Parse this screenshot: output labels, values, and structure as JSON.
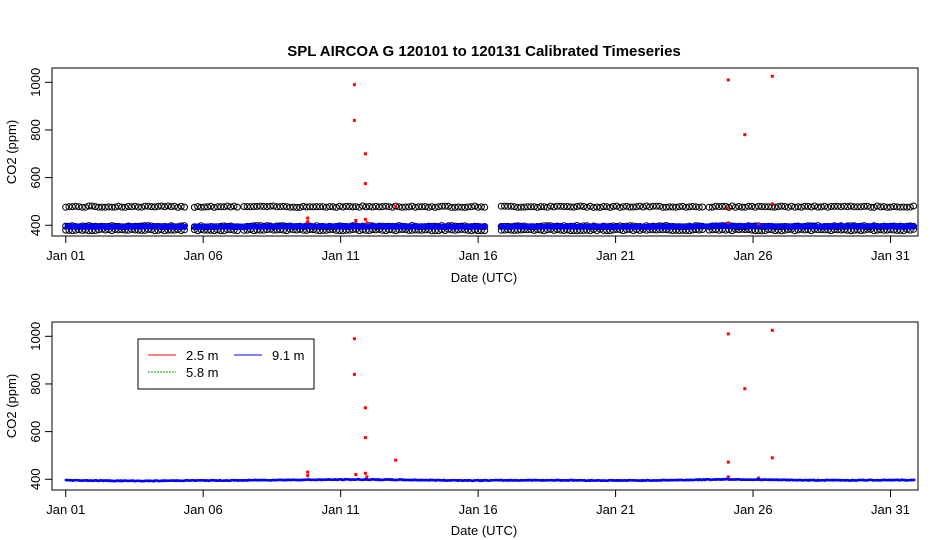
{
  "title": "SPL   AIRCOA  G    120101  to  120131   Calibrated Timeseries",
  "colors": {
    "series_2_5": "#ff0000",
    "series_5_8": "#00aa00",
    "series_9_1": "#0000ff",
    "raw": "#000000"
  },
  "chart_data": [
    {
      "type": "scatter",
      "panel": "top",
      "xlabel": "Date (UTC)",
      "ylabel": "CO2 (ppm)",
      "xlim": [
        0.5,
        32
      ],
      "ylim": [
        355,
        1060
      ],
      "x_ticks": [
        {
          "x": 1,
          "label": "Jan 01"
        },
        {
          "x": 6,
          "label": "Jan 06"
        },
        {
          "x": 11,
          "label": "Jan 11"
        },
        {
          "x": 16,
          "label": "Jan 16"
        },
        {
          "x": 21,
          "label": "Jan 21"
        },
        {
          "x": 26,
          "label": "Jan 26"
        },
        {
          "x": 31,
          "label": "Jan 31"
        }
      ],
      "y_ticks": [
        400,
        600,
        800,
        1000
      ],
      "legend": "none",
      "raw_levels": [
        380,
        396,
        478
      ],
      "raw_gaps": [
        [
          5.35,
          5.65
        ],
        [
          7.3,
          7.45
        ],
        [
          16.25,
          16.75
        ],
        [
          24.2,
          24.3
        ]
      ],
      "series": [
        {
          "name": "",
          "color_key": "series_9_1",
          "gaps": [
            [
              5.35,
              5.65
            ],
            [
              16.25,
              16.75
            ]
          ],
          "points": [
            [
              1,
              397
            ],
            [
              2.5,
              396
            ],
            [
              4,
              397
            ],
            [
              5.5,
              396
            ],
            [
              7,
              396
            ],
            [
              8.5,
              397
            ],
            [
              10,
              398
            ],
            [
              11.5,
              398
            ],
            [
              13,
              397
            ],
            [
              14.5,
              396
            ],
            [
              16,
              396
            ],
            [
              17.5,
              397
            ],
            [
              19,
              397
            ],
            [
              20.5,
              396
            ],
            [
              22,
              396
            ],
            [
              23.5,
              397
            ],
            [
              25,
              400
            ],
            [
              26.5,
              398
            ],
            [
              28,
              397
            ],
            [
              29.5,
              398
            ],
            [
              31,
              398
            ],
            [
              31.9,
              397
            ]
          ]
        },
        {
          "name": "",
          "color_key": "series_2_5",
          "points": [
            [
              9.8,
              430
            ],
            [
              9.8,
              415
            ],
            [
              11.5,
              990
            ],
            [
              11.5,
              840
            ],
            [
              11.55,
              420
            ],
            [
              11.9,
              700
            ],
            [
              11.9,
              575
            ],
            [
              11.9,
              425
            ],
            [
              11.95,
              410
            ],
            [
              13,
              480
            ],
            [
              25.1,
              1010
            ],
            [
              25.1,
              472
            ],
            [
              25.1,
              410
            ],
            [
              25.7,
              780
            ],
            [
              26.7,
              1025
            ],
            [
              26.7,
              490
            ],
            [
              26.2,
              405
            ]
          ]
        }
      ]
    },
    {
      "type": "scatter",
      "panel": "bottom",
      "xlabel": "Date (UTC)",
      "ylabel": "CO2 (ppm)",
      "xlim": [
        0.5,
        32
      ],
      "ylim": [
        355,
        1060
      ],
      "x_ticks": [
        {
          "x": 1,
          "label": "Jan 01"
        },
        {
          "x": 6,
          "label": "Jan 06"
        },
        {
          "x": 11,
          "label": "Jan 11"
        },
        {
          "x": 16,
          "label": "Jan 16"
        },
        {
          "x": 21,
          "label": "Jan 21"
        },
        {
          "x": 26,
          "label": "Jan 26"
        },
        {
          "x": 31,
          "label": "Jan 31"
        }
      ],
      "y_ticks": [
        400,
        600,
        800,
        1000
      ],
      "legend": "top-left",
      "series": [
        {
          "name": "2.5 m",
          "color_key": "series_2_5",
          "points": [
            [
              9.8,
              430
            ],
            [
              9.8,
              415
            ],
            [
              11.5,
              990
            ],
            [
              11.5,
              840
            ],
            [
              11.55,
              420
            ],
            [
              11.9,
              700
            ],
            [
              11.9,
              575
            ],
            [
              11.9,
              425
            ],
            [
              11.95,
              410
            ],
            [
              13,
              480
            ],
            [
              25.1,
              1010
            ],
            [
              25.1,
              472
            ],
            [
              25.1,
              410
            ],
            [
              25.7,
              780
            ],
            [
              26.7,
              1025
            ],
            [
              26.7,
              490
            ],
            [
              26.2,
              405
            ]
          ]
        },
        {
          "name": "5.8 m",
          "color_key": "series_5_8",
          "points": []
        },
        {
          "name": "9.1 m",
          "color_key": "series_9_1",
          "points": [
            [
              1,
              397
            ],
            [
              2.5,
              395
            ],
            [
              4,
              394
            ],
            [
              5.5,
              396
            ],
            [
              7,
              396
            ],
            [
              8.5,
              398
            ],
            [
              10,
              399
            ],
            [
              11.5,
              400
            ],
            [
              13,
              399
            ],
            [
              14.5,
              397
            ],
            [
              16,
              396
            ],
            [
              17.5,
              397
            ],
            [
              19,
              397
            ],
            [
              20.5,
              396
            ],
            [
              22,
              396
            ],
            [
              23.5,
              398
            ],
            [
              25,
              401
            ],
            [
              26.5,
              399
            ],
            [
              28,
              397
            ],
            [
              29.5,
              397
            ],
            [
              31,
              398
            ],
            [
              31.9,
              397
            ]
          ]
        }
      ]
    }
  ]
}
